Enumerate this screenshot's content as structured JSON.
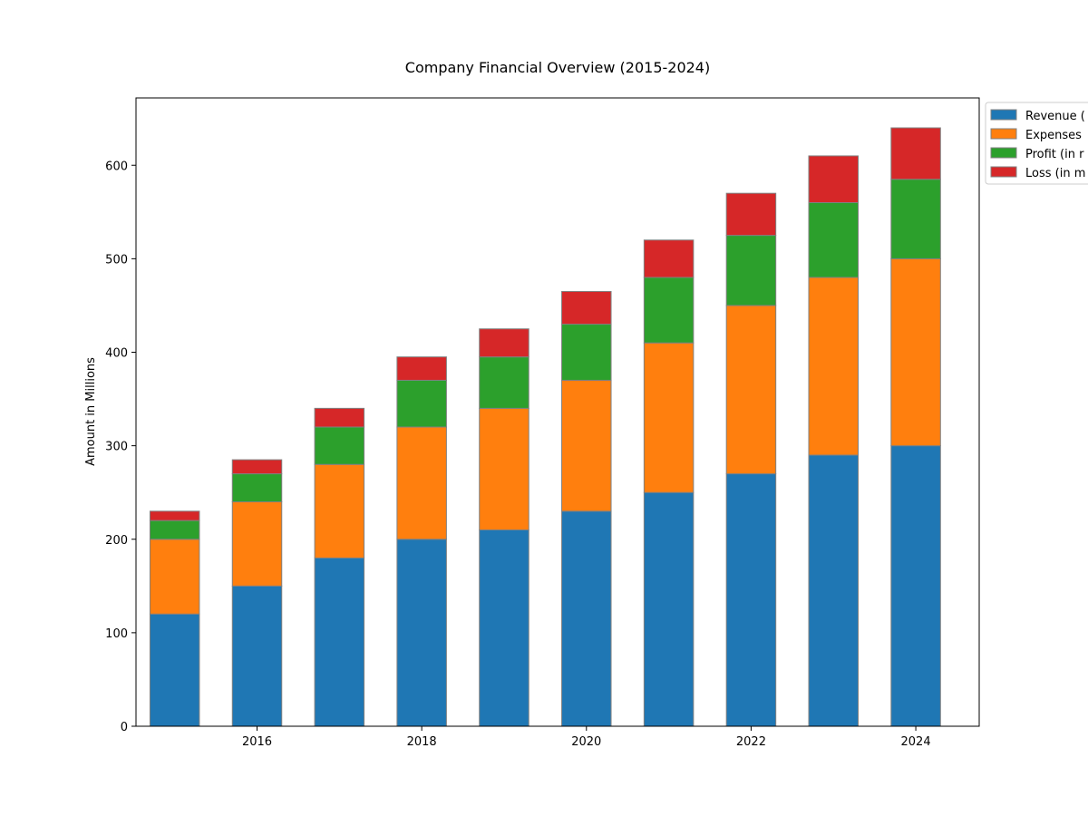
{
  "chart_data": {
    "type": "bar",
    "stacked": true,
    "title": "Company Financial Overview (2015-2024)",
    "xlabel": "",
    "ylabel": "Amount in Millions",
    "x": [
      2015,
      2016,
      2017,
      2018,
      2019,
      2020,
      2021,
      2022,
      2023,
      2024
    ],
    "xticks": [
      2016,
      2018,
      2020,
      2022,
      2024
    ],
    "xtick_labels": [
      "2016",
      "2018",
      "2020",
      "2022",
      "2024"
    ],
    "yticks": [
      0,
      100,
      200,
      300,
      400,
      500,
      600
    ],
    "ytick_labels": [
      "0",
      "100",
      "200",
      "300",
      "400",
      "500",
      "600"
    ],
    "ylim": [
      0,
      672
    ],
    "xlim": [
      2014.53,
      2024.77
    ],
    "grid": false,
    "legend_position": "outside top-right (clipped)",
    "series": [
      {
        "name": "Revenue (",
        "color": "#1f77b4",
        "values": [
          120,
          150,
          180,
          200,
          210,
          230,
          250,
          270,
          290,
          300
        ]
      },
      {
        "name": "Expenses",
        "color": "#ff7f0e",
        "values": [
          80,
          90,
          100,
          120,
          130,
          140,
          160,
          180,
          190,
          200
        ]
      },
      {
        "name": "Profit (in r",
        "color": "#2ca02c",
        "values": [
          20,
          30,
          40,
          50,
          55,
          60,
          70,
          75,
          80,
          85
        ]
      },
      {
        "name": "Loss (in m",
        "color": "#d62728",
        "values": [
          10,
          15,
          20,
          25,
          30,
          35,
          40,
          45,
          50,
          55
        ]
      }
    ]
  }
}
